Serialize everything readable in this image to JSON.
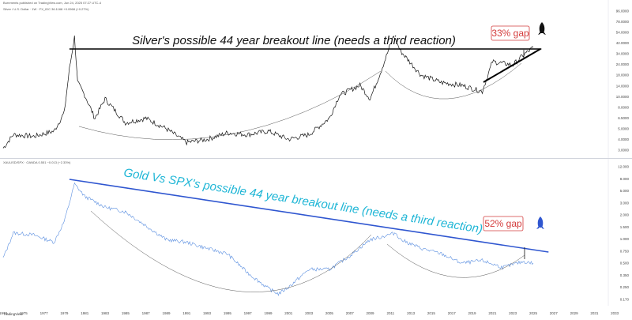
{
  "header": {
    "published": "Burnments published on TradingView.com, Jun 24, 2025 07:27 UTC-4",
    "legend_top": "Silver / U.S. Dollar · 1W · FX_IDC  36.1168  +0.0968 (+0.27%)",
    "legend_bottom": "XAUUSD/SPX · OANDA  0.551  −0.013 (−2.33%)"
  },
  "footer": {
    "brand": "TradingView"
  },
  "colors": {
    "silver_line": "#111111",
    "ratio_line": "#5b8fe0",
    "breakout_top": "#000000",
    "breakout_bottom": "#2f56d0",
    "annotation_cyan": "#1fb6d6",
    "gap_red": "#d43c3c"
  },
  "icons": {
    "top": "rocket-icon",
    "bottom": "rocket-icon"
  },
  "chart_data": [
    {
      "type": "line",
      "scale": "log",
      "series": [
        {
          "x": [
            1973,
            1974,
            1976,
            1978,
            1979,
            1979.5,
            1980,
            1980.3,
            1981,
            1982,
            1983,
            1985,
            1987,
            1989,
            1991,
            1993,
            1995,
            1997,
            1999,
            2001,
            2003,
            2005,
            2006,
            2008,
            2009,
            2010,
            2011.3,
            2012,
            2014,
            2016,
            2018,
            2020,
            2021,
            2023,
            2024,
            2025
          ],
          "values": [
            3.5,
            4.8,
            4.6,
            5.2,
            8,
            22,
            46,
            16,
            12,
            7,
            11,
            6.3,
            7,
            5.5,
            4,
            4.3,
            5,
            4.8,
            5.2,
            4.3,
            4.8,
            7,
            12,
            15,
            11,
            20,
            47,
            33,
            19,
            16,
            15,
            13,
            26,
            24,
            30,
            36
          ]
        }
      ],
      "annotations": {
        "breakout_label": "Silver's possible 44 year breakout line (needs a third reaction)",
        "gap_label": "33% gap"
      },
      "y_tick_labels": [
        "96.0000",
        "78.0000",
        "54.0000",
        "42.0000",
        "34.0000",
        "24.0000",
        "18.0000",
        "14.0000",
        "10.0000",
        "8.0000",
        "6.5000",
        "5.0000",
        "4.0000",
        "3.0000"
      ]
    },
    {
      "type": "line",
      "scale": "log",
      "series": [
        {
          "x": [
            1973,
            1974,
            1976,
            1978,
            1979,
            1980,
            1981,
            1983,
            1985,
            1987,
            1989,
            1991,
            1993,
            1995,
            1997,
            1999,
            2000,
            2001,
            2003,
            2005,
            2007,
            2009,
            2010,
            2011.5,
            2012,
            2014,
            2016,
            2018,
            2020,
            2022,
            2024,
            2025
          ],
          "values": [
            0.65,
            1.5,
            1.4,
            1.1,
            2.2,
            7.5,
            5,
            3.5,
            3,
            1.9,
            1.2,
            1.1,
            0.9,
            0.75,
            0.4,
            0.24,
            0.2,
            0.25,
            0.45,
            0.45,
            0.7,
            1.2,
            1.3,
            1.5,
            1.2,
            0.9,
            0.75,
            0.55,
            0.6,
            0.48,
            0.58,
            0.551
          ]
        }
      ],
      "annotations": {
        "breakout_label": "Gold Vs SPX's possible 44 year breakout line (needs a third reaction)",
        "gap_label": "52% gap"
      },
      "y_tick_labels": [
        "12.000",
        "8.000",
        "5.000",
        "3.000",
        "2.000",
        "1.500",
        "1.000",
        "0.750",
        "0.500",
        "0.350",
        "0.250",
        "0.170"
      ]
    }
  ],
  "x_axis_labels": [
    "1973",
    "1975",
    "1977",
    "1979",
    "1981",
    "1983",
    "1985",
    "1987",
    "1989",
    "1991",
    "1993",
    "1995",
    "1997",
    "1999",
    "2001",
    "2003",
    "2005",
    "2007",
    "2009",
    "2011",
    "2013",
    "2015",
    "2017",
    "2019",
    "2021",
    "2023",
    "2025",
    "2027",
    "2029",
    "2031",
    "2033",
    "203"
  ]
}
